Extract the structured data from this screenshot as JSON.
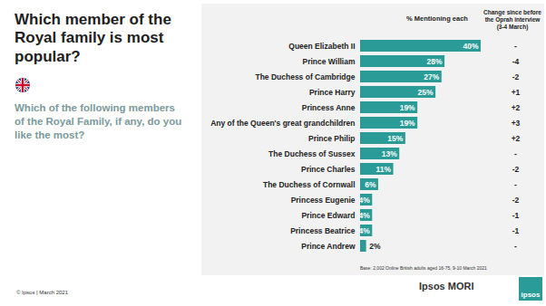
{
  "chart_data": {
    "type": "bar",
    "orientation": "horizontal",
    "title": "Which member of the Royal family is most popular?",
    "subtitle": "Which of the following members of the Royal Family, if any, do you like the most?",
    "value_header": "% Mentioning each",
    "change_header": "Change since before the Oprah interview (3-4 March)",
    "categories": [
      "Queen Elizabeth II",
      "Prince William",
      "The Duchess of Cambridge",
      "Prince Harry",
      "Princess Anne",
      "Any of the Queen's great grandchildren",
      "Prince Philip",
      "The Duchess of Sussex",
      "Prince Charles",
      "The Duchess of Cornwall",
      "Princess Eugenie",
      "Prince Edward",
      "Princess Beatrice",
      "Prince Andrew"
    ],
    "values": [
      40,
      28,
      27,
      25,
      19,
      19,
      15,
      13,
      11,
      6,
      4,
      4,
      4,
      2
    ],
    "value_labels": [
      "40%",
      "28%",
      "27%",
      "25%",
      "19%",
      "19%",
      "15%",
      "13%",
      "11%",
      "6%",
      "4%",
      "4%",
      "4%",
      "2%"
    ],
    "change_labels": [
      "-",
      "-4",
      "-2",
      "+1",
      "+2",
      "+3",
      "+2",
      "-",
      "-2",
      "-",
      "-2",
      "-1",
      "-1",
      "-"
    ],
    "color": "#2b9b98",
    "xlim": [
      0,
      40
    ],
    "data_labels": true,
    "tick_labels": "y",
    "annotations": {
      "base": "Base: 2,002 Online British adults aged 16-75, 9-10 March 2021",
      "copyright": "© Ipsos | March 2021",
      "brand": "Ipsos MORI",
      "logo": "ipsos"
    }
  }
}
